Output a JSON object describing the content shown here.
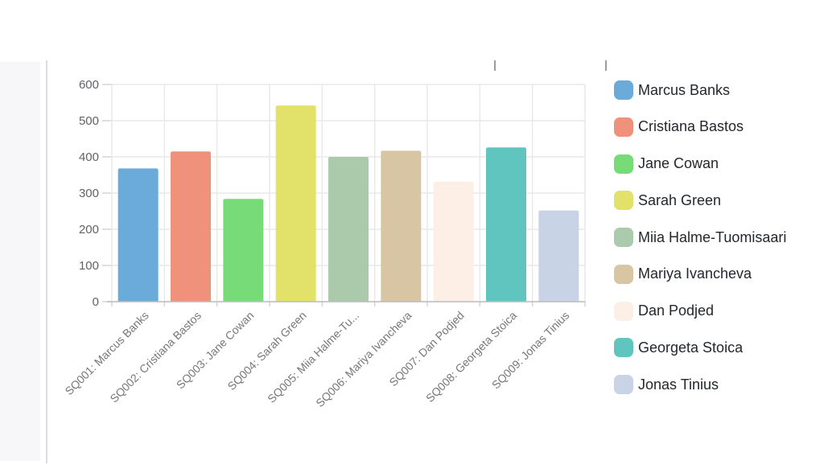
{
  "app": {
    "background_color": "#ffffff",
    "sidebar_color": "#f7f7f9",
    "divider_color": "#dcdce2",
    "top_tick_color": "#9b9ba0"
  },
  "chart_data": {
    "type": "bar",
    "title": "",
    "xlabel": "",
    "ylabel": "",
    "categories": [
      "SQ001: Marcus Banks",
      "SQ002: Cristiana Bastos",
      "SQ003: Jane Cowan",
      "SQ004: Sarah Green",
      "SQ005: Miia Halme-Tu...",
      "SQ006: Mariya Ivancheva",
      "SQ007: Dan Podjed",
      "SQ008: Georgeta Stoica",
      "SQ009: Jonas Tinius"
    ],
    "values": [
      368,
      415,
      284,
      542,
      400,
      417,
      331,
      426,
      252
    ],
    "colors": [
      "#6babda",
      "#f0917b",
      "#77dc77",
      "#e2e26b",
      "#abcaab",
      "#d8c5a4",
      "#fdefe6",
      "#60c5bf",
      "#c8d3e5"
    ],
    "legend": [
      "Marcus Banks",
      "Cristiana Bastos",
      "Jane Cowan",
      "Sarah Green",
      "Miia Halme-Tuomisaari",
      "Mariya Ivancheva",
      "Dan Podjed",
      "Georgeta Stoica",
      "Jonas Tinius"
    ],
    "legend_position": "right",
    "grid": true,
    "ylim": [
      0,
      600
    ],
    "yticks": [
      0,
      100,
      200,
      300,
      400,
      500,
      600
    ],
    "style": {
      "grid_color": "#e9e9e9",
      "axis_line_color": "#bdbdbd",
      "tick_mark_color": "#d4d4d4",
      "ytick_label_color": "#5f6368",
      "xtick_label_color": "#777777"
    }
  }
}
